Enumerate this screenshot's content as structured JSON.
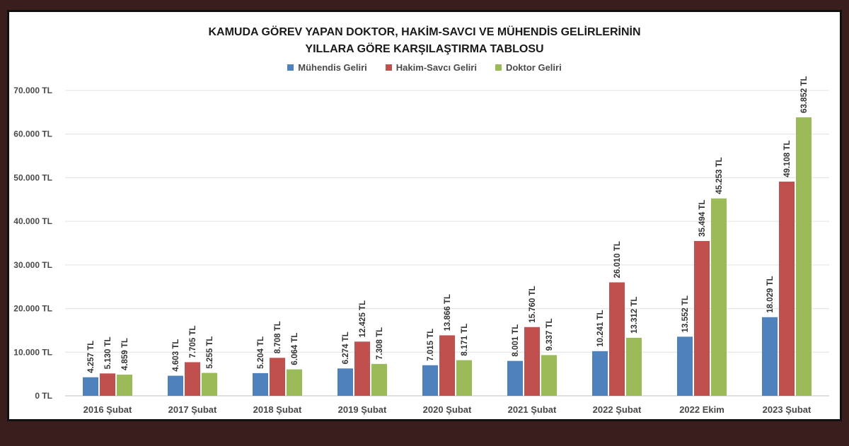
{
  "chart_data": {
    "type": "bar",
    "title_line1": "KAMUDA GÖREV YAPAN DOKTOR, HAKİM-SAVCI VE MÜHENDİS GELİRLERİNİN",
    "title_line2": "YILLARA GÖRE KARŞILAŞTIRMA TABLOSU",
    "categories": [
      "2016 Şubat",
      "2017 Şubat",
      "2018 Şubat",
      "2019 Şubat",
      "2020 Şubat",
      "2021 Şubat",
      "2022 Şubat",
      "2022 Ekim",
      "2023 Şubat"
    ],
    "series": [
      {
        "name": "Mühendis Geliri",
        "color": "#4f81bd",
        "values": [
          4257,
          4603,
          5204,
          6274,
          7015,
          8001,
          10241,
          13552,
          18029
        ],
        "labels": [
          "4.257 TL",
          "4.603 TL",
          "5.204 TL",
          "6.274 TL",
          "7.015 TL",
          "8.001 TL",
          "10.241 TL",
          "13.552 TL",
          "18.029 TL"
        ]
      },
      {
        "name": "Hakim-Savcı Geliri",
        "color": "#c0504d",
        "values": [
          5130,
          7705,
          8708,
          12425,
          13866,
          15760,
          26010,
          35494,
          49108
        ],
        "labels": [
          "5.130 TL",
          "7.705 TL",
          "8.708 TL",
          "12.425 TL",
          "13.866 TL",
          "15.760 TL",
          "26.010 TL",
          "35.494 TL",
          "49.108 TL"
        ]
      },
      {
        "name": "Doktor Geliri",
        "color": "#9bbb59",
        "values": [
          4859,
          5255,
          6064,
          7308,
          8171,
          9337,
          13312,
          45253,
          63852
        ],
        "labels": [
          "4.859 TL",
          "5.255 TL",
          "6.064 TL",
          "7.308 TL",
          "8.171 TL",
          "9.337 TL",
          "13.312 TL",
          "45.253 TL",
          "63.852 TL"
        ]
      }
    ],
    "y_ticks": [
      0,
      10000,
      20000,
      30000,
      40000,
      50000,
      60000,
      70000
    ],
    "y_tick_labels": [
      "0 TL",
      "10.000 TL",
      "20.000 TL",
      "30.000 TL",
      "40.000 TL",
      "50.000 TL",
      "60.000 TL",
      "70.000 TL"
    ],
    "ylim": [
      0,
      70000
    ],
    "grid": true,
    "legend_position": "top-center"
  }
}
